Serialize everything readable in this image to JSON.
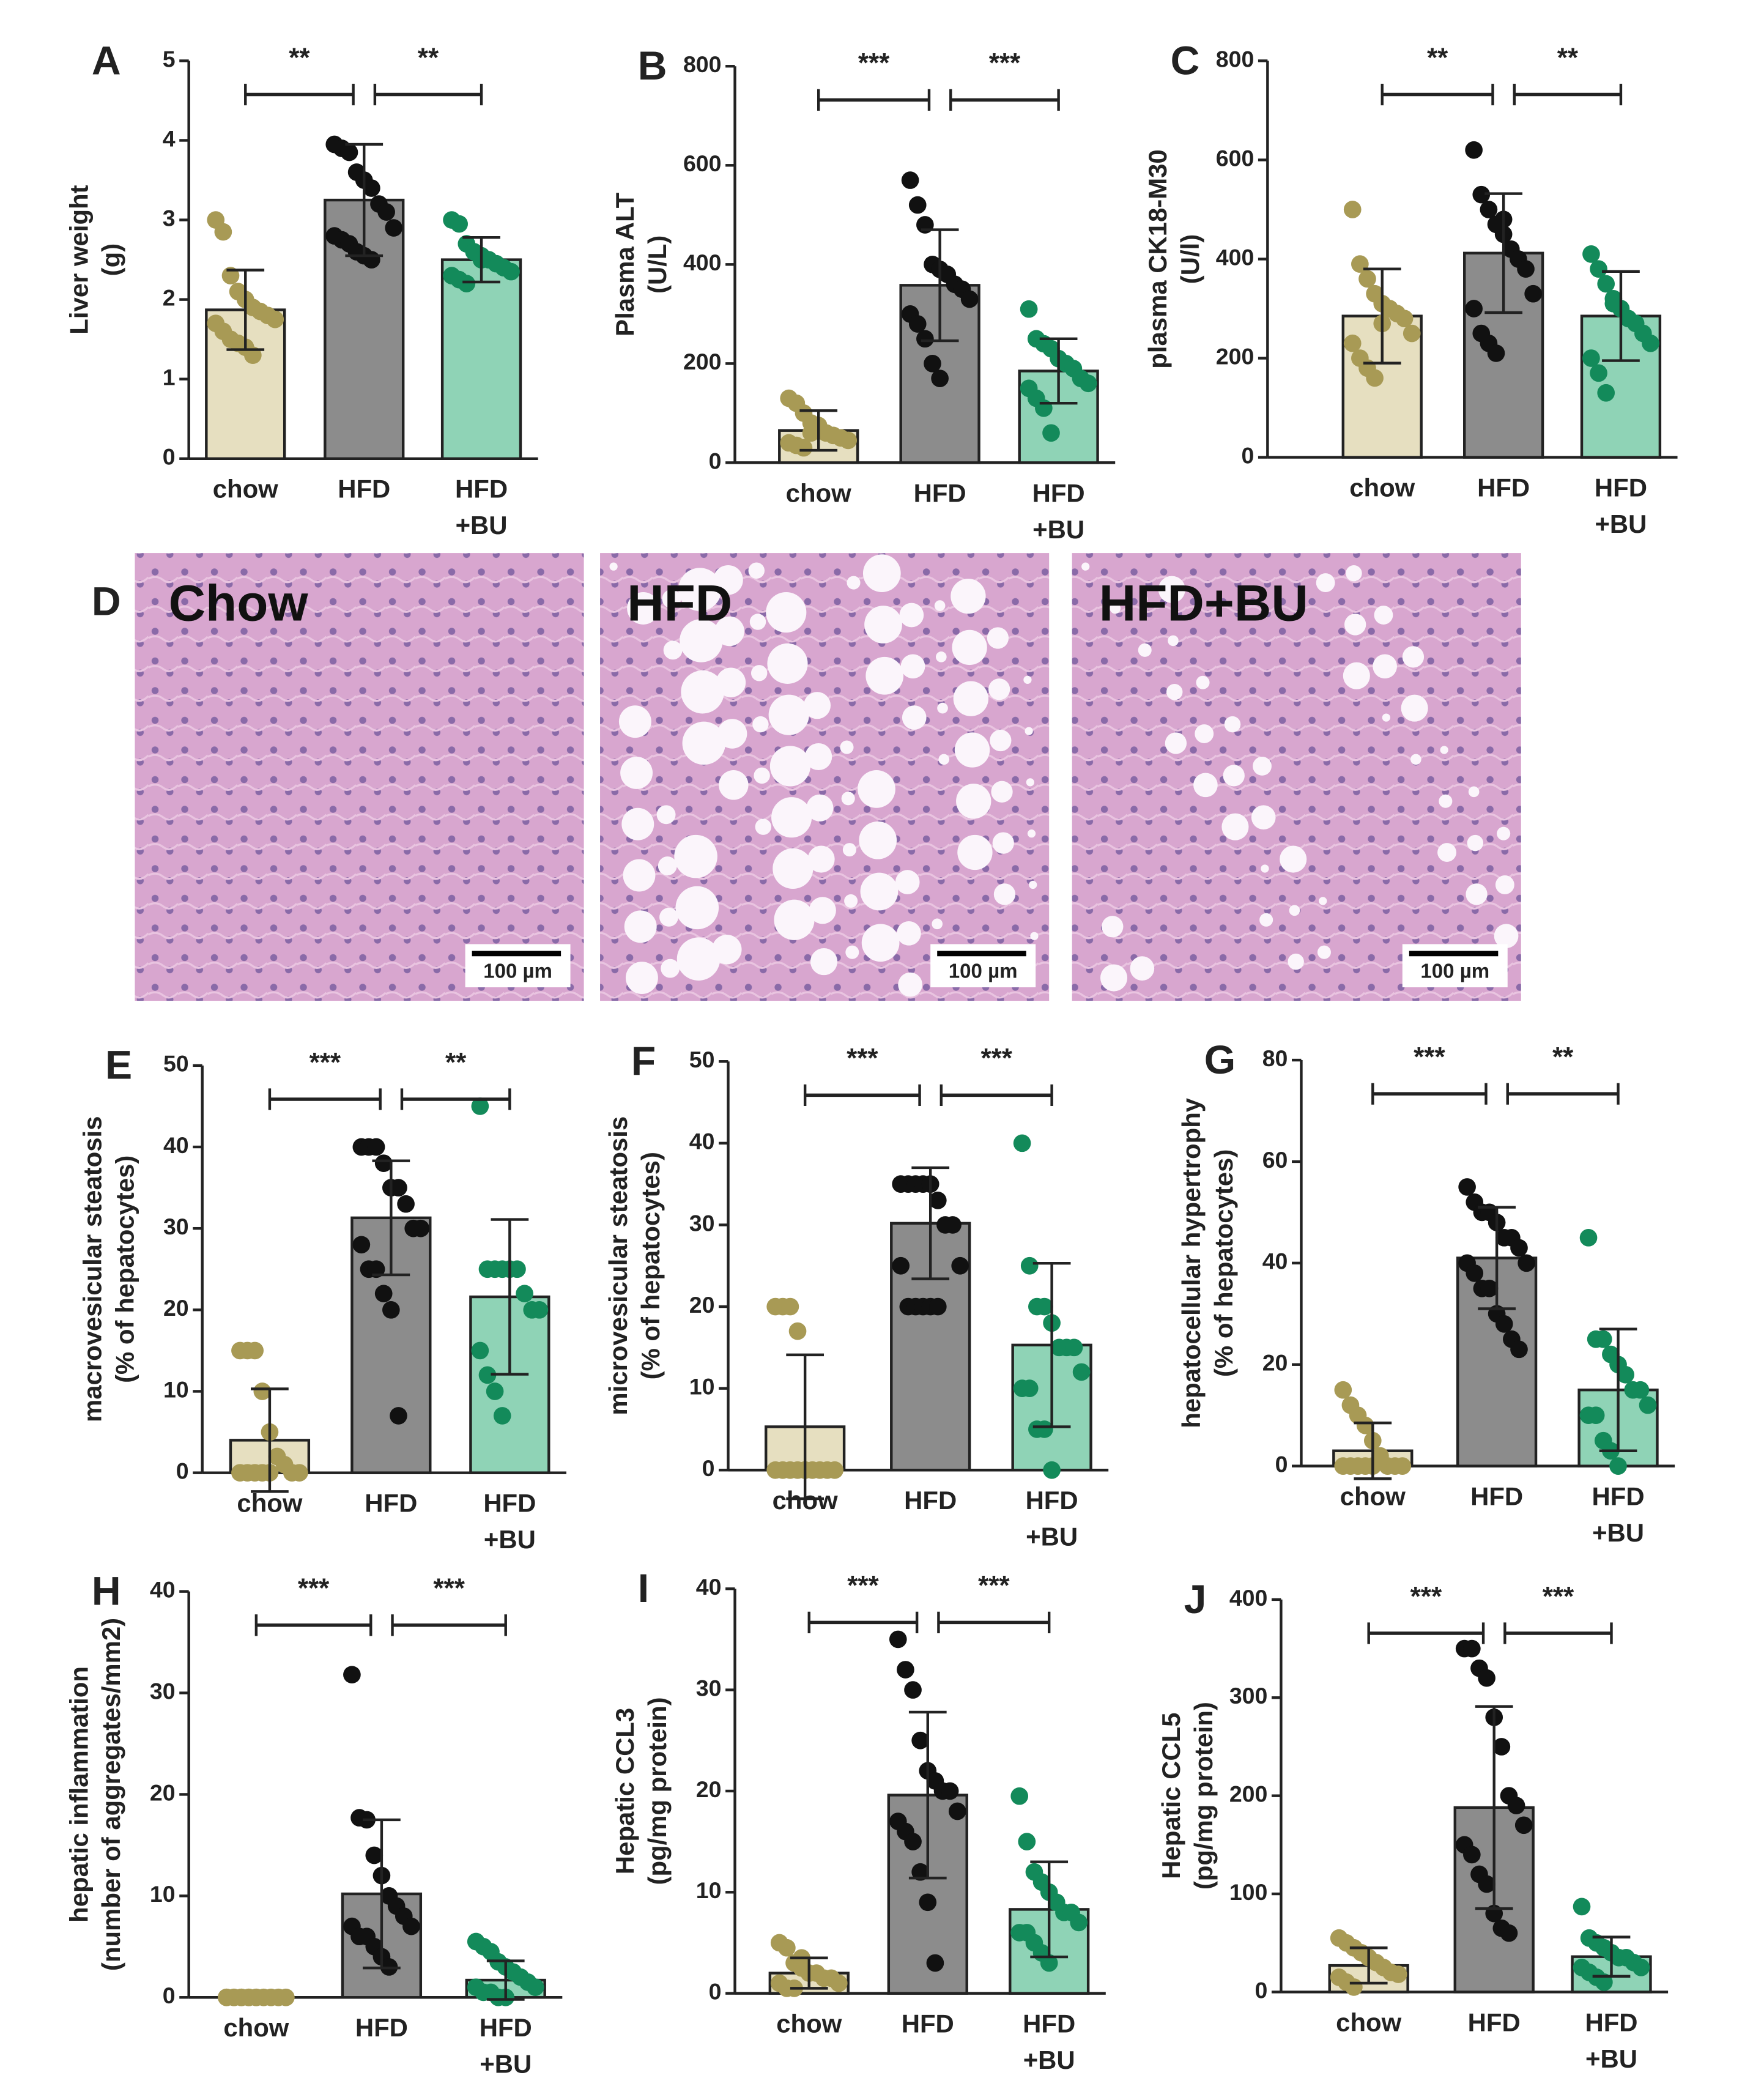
{
  "chart_data": [
    {
      "type": "bar",
      "panel": "A",
      "ylabel": [
        "Liver weight",
        "(g)"
      ],
      "categories": [
        [
          "chow"
        ],
        [
          "HFD"
        ],
        [
          "HFD",
          "+BU"
        ]
      ],
      "ylim": [
        0,
        5
      ],
      "yticks": [
        0,
        1,
        2,
        3,
        4,
        5
      ],
      "values": [
        1.87,
        3.25,
        2.5
      ],
      "errors": [
        0.5,
        0.7,
        0.28
      ],
      "points": [
        [
          3.0,
          2.85,
          2.3,
          2.1,
          2.0,
          1.9,
          1.85,
          1.8,
          1.75,
          1.7,
          1.6,
          1.5,
          1.45,
          1.4,
          1.3
        ],
        [
          3.95,
          3.9,
          3.85,
          3.6,
          3.5,
          3.4,
          3.2,
          3.1,
          2.9,
          2.8,
          2.75,
          2.7,
          2.6,
          2.55,
          2.5
        ],
        [
          3.0,
          2.95,
          2.7,
          2.6,
          2.55,
          2.5,
          2.45,
          2.4,
          2.35,
          2.3,
          2.25,
          2.2,
          2.6,
          2.5
        ]
      ],
      "bar_colors": [
        "#e6dfc0",
        "#8c8c8c",
        "#8fd3b6"
      ],
      "point_colors": [
        "#a89a55",
        "#111111",
        "#138a5a"
      ],
      "comparisons": [
        {
          "pair": [
            0,
            1
          ],
          "label": "**"
        },
        {
          "pair": [
            1,
            2
          ],
          "label": "**"
        }
      ]
    },
    {
      "type": "bar",
      "panel": "B",
      "ylabel": [
        "Plasma ALT",
        "(U/L)"
      ],
      "categories": [
        [
          "chow"
        ],
        [
          "HFD"
        ],
        [
          "HFD",
          "+BU"
        ]
      ],
      "ylim": [
        0,
        800
      ],
      "yticks": [
        0,
        200,
        400,
        600,
        800
      ],
      "values": [
        65,
        358,
        185
      ],
      "errors": [
        40,
        112,
        65
      ],
      "points": [
        [
          130,
          120,
          100,
          80,
          70,
          60,
          55,
          50,
          45,
          40,
          35,
          30,
          60,
          75
        ],
        [
          570,
          520,
          480,
          400,
          390,
          380,
          360,
          350,
          330,
          300,
          280,
          250,
          200,
          170
        ],
        [
          310,
          250,
          240,
          230,
          210,
          200,
          190,
          170,
          160,
          150,
          130,
          110,
          60
        ]
      ],
      "bar_colors": [
        "#e6dfc0",
        "#8c8c8c",
        "#8fd3b6"
      ],
      "point_colors": [
        "#a89a55",
        "#111111",
        "#138a5a"
      ],
      "comparisons": [
        {
          "pair": [
            0,
            1
          ],
          "label": "***"
        },
        {
          "pair": [
            1,
            2
          ],
          "label": "***"
        }
      ]
    },
    {
      "type": "bar",
      "panel": "C",
      "ylabel": [
        "plasma CK18-M30",
        "(U/l)"
      ],
      "categories": [
        [
          "chow"
        ],
        [
          "HFD"
        ],
        [
          "HFD",
          "+BU"
        ]
      ],
      "ylim": [
        0,
        800
      ],
      "yticks": [
        0,
        200,
        400,
        600,
        800
      ],
      "values": [
        285,
        412,
        285
      ],
      "errors": [
        95,
        120,
        90
      ],
      "points": [
        [
          500,
          390,
          360,
          330,
          310,
          300,
          290,
          280,
          250,
          230,
          200,
          180,
          160,
          270
        ],
        [
          620,
          530,
          500,
          470,
          450,
          420,
          400,
          380,
          330,
          300,
          250,
          230,
          210,
          480
        ],
        [
          410,
          380,
          350,
          320,
          300,
          280,
          270,
          250,
          230,
          200,
          170,
          130,
          310
        ]
      ],
      "bar_colors": [
        "#e6dfc0",
        "#8c8c8c",
        "#8fd3b6"
      ],
      "point_colors": [
        "#a89a55",
        "#111111",
        "#138a5a"
      ],
      "comparisons": [
        {
          "pair": [
            0,
            1
          ],
          "label": "**"
        },
        {
          "pair": [
            1,
            2
          ],
          "label": "**"
        }
      ]
    },
    {
      "type": "bar",
      "panel": "E",
      "ylabel": [
        "macrovesicular steatosis",
        "(% of hepatocytes)"
      ],
      "categories": [
        [
          "chow"
        ],
        [
          "HFD"
        ],
        [
          "HFD",
          "+BU"
        ]
      ],
      "ylim": [
        0,
        50
      ],
      "yticks": [
        0,
        10,
        20,
        30,
        40,
        50
      ],
      "values": [
        4,
        31.3,
        21.6
      ],
      "errors": [
        6.3,
        7,
        9.5
      ],
      "points": [
        [
          15,
          15,
          15,
          10,
          5,
          2,
          1,
          0,
          0,
          0,
          0,
          0,
          0,
          0
        ],
        [
          40,
          40,
          40,
          38,
          35,
          35,
          33,
          30,
          30,
          28,
          25,
          25,
          22,
          20,
          7
        ],
        [
          45,
          25,
          25,
          25,
          25,
          25,
          22,
          20,
          20,
          15,
          12,
          10,
          7
        ]
      ],
      "bar_colors": [
        "#e6dfc0",
        "#8c8c8c",
        "#8fd3b6"
      ],
      "point_colors": [
        "#a89a55",
        "#111111",
        "#138a5a"
      ],
      "comparisons": [
        {
          "pair": [
            0,
            1
          ],
          "label": "***"
        },
        {
          "pair": [
            1,
            2
          ],
          "label": "**"
        }
      ]
    },
    {
      "type": "bar",
      "panel": "F",
      "ylabel": [
        "microvesicular steatosis",
        "(% of hepatocytes)"
      ],
      "categories": [
        [
          "chow"
        ],
        [
          "HFD"
        ],
        [
          "HFD",
          "+BU"
        ]
      ],
      "ylim": [
        0,
        50
      ],
      "yticks": [
        0,
        10,
        20,
        30,
        40,
        50
      ],
      "values": [
        5.3,
        30.2,
        15.3
      ],
      "errors": [
        8.8,
        6.8,
        10
      ],
      "points": [
        [
          20,
          20,
          20,
          17,
          0,
          0,
          0,
          0,
          0,
          0,
          0,
          0,
          0,
          0
        ],
        [
          35,
          35,
          35,
          35,
          35,
          33,
          30,
          30,
          25,
          25,
          20,
          20,
          20,
          20,
          20
        ],
        [
          40,
          25,
          20,
          20,
          18,
          15,
          15,
          15,
          12,
          10,
          10,
          5,
          5,
          0
        ]
      ],
      "bar_colors": [
        "#e6dfc0",
        "#8c8c8c",
        "#8fd3b6"
      ],
      "point_colors": [
        "#a89a55",
        "#111111",
        "#138a5a"
      ],
      "comparisons": [
        {
          "pair": [
            0,
            1
          ],
          "label": "***"
        },
        {
          "pair": [
            1,
            2
          ],
          "label": "***"
        }
      ]
    },
    {
      "type": "bar",
      "panel": "G",
      "ylabel": [
        "hepatocellular hypertrophy",
        "(% of hepatocytes)"
      ],
      "categories": [
        [
          "chow"
        ],
        [
          "HFD"
        ],
        [
          "HFD",
          "+BU"
        ]
      ],
      "ylim": [
        0,
        80
      ],
      "yticks": [
        0,
        20,
        40,
        60,
        80
      ],
      "values": [
        3,
        41,
        15
      ],
      "errors": [
        5.5,
        10,
        12
      ],
      "points": [
        [
          15,
          12,
          10,
          8,
          5,
          2,
          0,
          0,
          0,
          0,
          0,
          0,
          0,
          0
        ],
        [
          55,
          52,
          50,
          50,
          48,
          45,
          45,
          43,
          40,
          40,
          38,
          35,
          35,
          30,
          28,
          25,
          23
        ],
        [
          45,
          25,
          25,
          22,
          20,
          18,
          15,
          15,
          12,
          10,
          10,
          5,
          3,
          0
        ]
      ],
      "bar_colors": [
        "#e6dfc0",
        "#8c8c8c",
        "#8fd3b6"
      ],
      "point_colors": [
        "#a89a55",
        "#111111",
        "#138a5a"
      ],
      "comparisons": [
        {
          "pair": [
            0,
            1
          ],
          "label": "***"
        },
        {
          "pair": [
            1,
            2
          ],
          "label": "**"
        }
      ]
    },
    {
      "type": "bar",
      "panel": "H",
      "ylabel": [
        "hepatic inflammation",
        "(number of aggregates/mm2)"
      ],
      "categories": [
        [
          "chow"
        ],
        [
          "HFD"
        ],
        [
          "HFD",
          "+BU"
        ]
      ],
      "ylim": [
        0,
        40
      ],
      "yticks": [
        0,
        10,
        20,
        30,
        40
      ],
      "values": [
        0,
        10.2,
        1.7
      ],
      "errors": [
        0,
        7.3,
        1.9
      ],
      "points": [
        [
          0,
          0,
          0,
          0,
          0,
          0,
          0,
          0,
          0,
          0,
          0,
          0,
          0,
          0
        ],
        [
          31.8,
          17.7,
          17.5,
          14,
          12,
          10,
          9,
          8,
          7,
          7,
          6,
          6,
          5,
          4,
          3
        ],
        [
          5.5,
          5,
          4.5,
          3.5,
          3,
          2.5,
          2,
          1.5,
          1,
          1,
          0.5,
          0.5,
          0,
          0
        ]
      ],
      "bar_colors": [
        "#e6dfc0",
        "#8c8c8c",
        "#8fd3b6"
      ],
      "point_colors": [
        "#a89a55",
        "#111111",
        "#138a5a"
      ],
      "comparisons": [
        {
          "pair": [
            0,
            1
          ],
          "label": "***"
        },
        {
          "pair": [
            1,
            2
          ],
          "label": "***"
        }
      ]
    },
    {
      "type": "bar",
      "panel": "I",
      "ylabel": [
        "Hepatic CCL3",
        "(pg/mg protein)"
      ],
      "categories": [
        [
          "chow"
        ],
        [
          "HFD"
        ],
        [
          "HFD",
          "+BU"
        ]
      ],
      "ylim": [
        0,
        40
      ],
      "yticks": [
        0,
        10,
        20,
        30,
        40
      ],
      "values": [
        2,
        19.6,
        8.3
      ],
      "errors": [
        1.5,
        8.2,
        4.7
      ],
      "points": [
        [
          5,
          4.5,
          3,
          2.5,
          2,
          2,
          1.5,
          1.5,
          1,
          1,
          0.5,
          0.5,
          3.5
        ],
        [
          35,
          32,
          30,
          25,
          22,
          21,
          20,
          20,
          18,
          17,
          16,
          15,
          12,
          9,
          3
        ],
        [
          19.5,
          15,
          12,
          11,
          10,
          9,
          8,
          8,
          7,
          6,
          6,
          5,
          4,
          3
        ]
      ],
      "bar_colors": [
        "#e6dfc0",
        "#8c8c8c",
        "#8fd3b6"
      ],
      "point_colors": [
        "#a89a55",
        "#111111",
        "#138a5a"
      ],
      "comparisons": [
        {
          "pair": [
            0,
            1
          ],
          "label": "***"
        },
        {
          "pair": [
            1,
            2
          ],
          "label": "***"
        }
      ]
    },
    {
      "type": "bar",
      "panel": "J",
      "ylabel": [
        "Hepatic CCL5",
        "(pg/mg protein)"
      ],
      "categories": [
        [
          "chow"
        ],
        [
          "HFD"
        ],
        [
          "HFD",
          "+BU"
        ]
      ],
      "ylim": [
        0,
        400
      ],
      "yticks": [
        0,
        100,
        200,
        300,
        400
      ],
      "values": [
        27,
        188,
        36
      ],
      "errors": [
        18,
        103,
        20
      ],
      "points": [
        [
          55,
          50,
          45,
          40,
          35,
          30,
          25,
          20,
          18,
          15,
          10,
          5
        ],
        [
          350,
          350,
          330,
          320,
          280,
          250,
          200,
          190,
          170,
          150,
          140,
          120,
          110,
          80,
          65,
          60
        ],
        [
          87,
          55,
          50,
          45,
          40,
          35,
          35,
          30,
          25,
          25,
          20,
          15,
          10
        ]
      ],
      "bar_colors": [
        "#e6dfc0",
        "#8c8c8c",
        "#8fd3b6"
      ],
      "point_colors": [
        "#a89a55",
        "#111111",
        "#138a5a"
      ],
      "comparisons": [
        {
          "pair": [
            0,
            1
          ],
          "label": "***"
        },
        {
          "pair": [
            1,
            2
          ],
          "label": "***"
        }
      ]
    }
  ],
  "histology": {
    "panel": "D",
    "images": [
      {
        "label": "Chow",
        "scale_bar": "100 µm"
      },
      {
        "label": "HFD",
        "scale_bar": "100 µm"
      },
      {
        "label": "HFD+BU",
        "scale_bar": "100 µm"
      }
    ]
  }
}
